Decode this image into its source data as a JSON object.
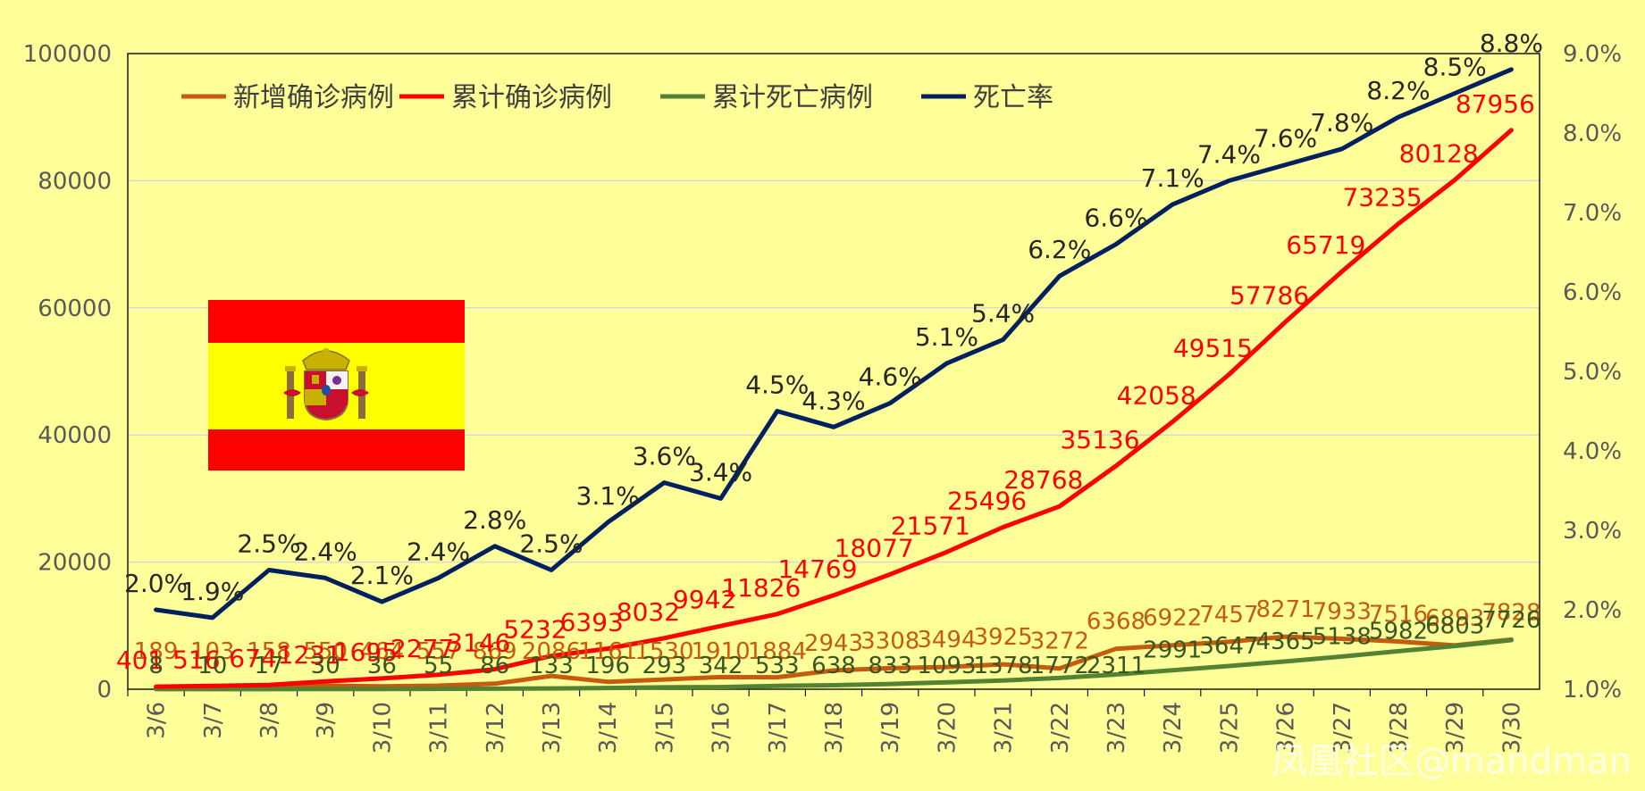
{
  "chart_data": {
    "type": "line",
    "categories": [
      "3/6",
      "3/7",
      "3/8",
      "3/9",
      "3/10",
      "3/11",
      "3/12",
      "3/13",
      "3/14",
      "3/15",
      "3/16",
      "3/17",
      "3/18",
      "3/19",
      "3/20",
      "3/21",
      "3/22",
      "3/23",
      "3/24",
      "3/25",
      "3/26",
      "3/27",
      "3/28",
      "3/29",
      "3/30"
    ],
    "ylim": [
      0,
      100000
    ],
    "y_ticks": [
      "0",
      "20000",
      "40000",
      "60000",
      "80000",
      "100000"
    ],
    "y2lim": [
      1.0,
      9.0
    ],
    "y2_ticks": [
      "1.0%",
      "2.0%",
      "3.0%",
      "4.0%",
      "5.0%",
      "6.0%",
      "7.0%",
      "8.0%",
      "9.0%"
    ],
    "grid": true,
    "legend_position": "top-left",
    "series": [
      {
        "name": "新增确诊病例",
        "axis": "left",
        "color": "#C55A11",
        "values": [
          189,
          103,
          158,
          550,
          464,
          557,
          869,
          2086,
          1161,
          1530,
          1910,
          1884,
          2943,
          3308,
          3494,
          3925,
          3272,
          6368,
          6922,
          7457,
          8271,
          7933,
          7516,
          6893,
          7828
        ],
        "labels": [
          "189",
          "103",
          "158",
          "550",
          "464",
          "557",
          "869",
          "2086",
          "1161",
          "1530",
          "1910",
          "1884",
          "2943",
          "3308",
          "3494",
          "3925",
          "3272",
          "6368",
          "6922",
          "7457",
          "8271",
          "7933",
          "7516",
          "6893",
          "7828"
        ]
      },
      {
        "name": "累计确诊病例",
        "axis": "left",
        "color": "#FF0000",
        "values": [
          401,
          516,
          674,
          1231,
          1695,
          2277,
          3146,
          5232,
          6393,
          8032,
          9942,
          11826,
          14769,
          18077,
          21571,
          25496,
          28768,
          35136,
          42058,
          49515,
          57786,
          65719,
          73235,
          80128,
          87956
        ],
        "labels": [
          "401",
          "516",
          "674",
          "1231",
          "1695",
          "2277",
          "3146",
          "5232",
          "6393",
          "8032",
          "9942",
          "11826",
          "14769",
          "18077",
          "21571",
          "25496",
          "28768",
          "35136",
          "42058",
          "49515",
          "57786",
          "65719",
          "73235",
          "80128",
          "87956"
        ]
      },
      {
        "name": "累计死亡病例",
        "axis": "left",
        "color": "#548235",
        "values": [
          8,
          10,
          17,
          30,
          36,
          55,
          86,
          133,
          196,
          293,
          342,
          533,
          638,
          833,
          1093,
          1378,
          1772,
          2311,
          2991,
          3647,
          4365,
          5138,
          5982,
          6803,
          7726
        ],
        "labels": [
          "8",
          "10",
          "17",
          "30",
          "36",
          "55",
          "86",
          "133",
          "196",
          "293",
          "342",
          "533",
          "638",
          "833",
          "1093",
          "1378",
          "1772",
          "2311",
          "2991",
          "3647",
          "4365",
          "5138",
          "5982",
          "6803",
          "7726"
        ]
      },
      {
        "name": "死亡率",
        "axis": "right",
        "color": "#002060",
        "values": [
          2.0,
          1.9,
          2.5,
          2.4,
          2.1,
          2.4,
          2.8,
          2.5,
          3.1,
          3.6,
          3.4,
          4.5,
          4.3,
          4.6,
          5.1,
          5.4,
          6.2,
          6.6,
          7.1,
          7.4,
          7.6,
          7.8,
          8.2,
          8.5,
          8.8
        ],
        "labels": [
          "2.0%",
          "1.9%",
          "2.5%",
          "2.4%",
          "2.1%",
          "2.4%",
          "2.8%",
          "2.5%",
          "3.1%",
          "3.6%",
          "3.4%",
          "4.5%",
          "4.3%",
          "4.6%",
          "5.1%",
          "5.4%",
          "6.2%",
          "6.6%",
          "7.1%",
          "7.4%",
          "7.6%",
          "7.8%",
          "8.2%",
          "8.5%",
          "8.8%"
        ]
      }
    ]
  },
  "flag": {
    "colors": {
      "red": "#FF0000",
      "yellow": "#FFFF00"
    },
    "emblem_icon": "spain-coat-of-arms-icon"
  },
  "watermark": "凤凰社区@mandman",
  "colors": {
    "background": "#FFFF99",
    "gridline": "#D9D9D9",
    "axis": "#000000"
  }
}
